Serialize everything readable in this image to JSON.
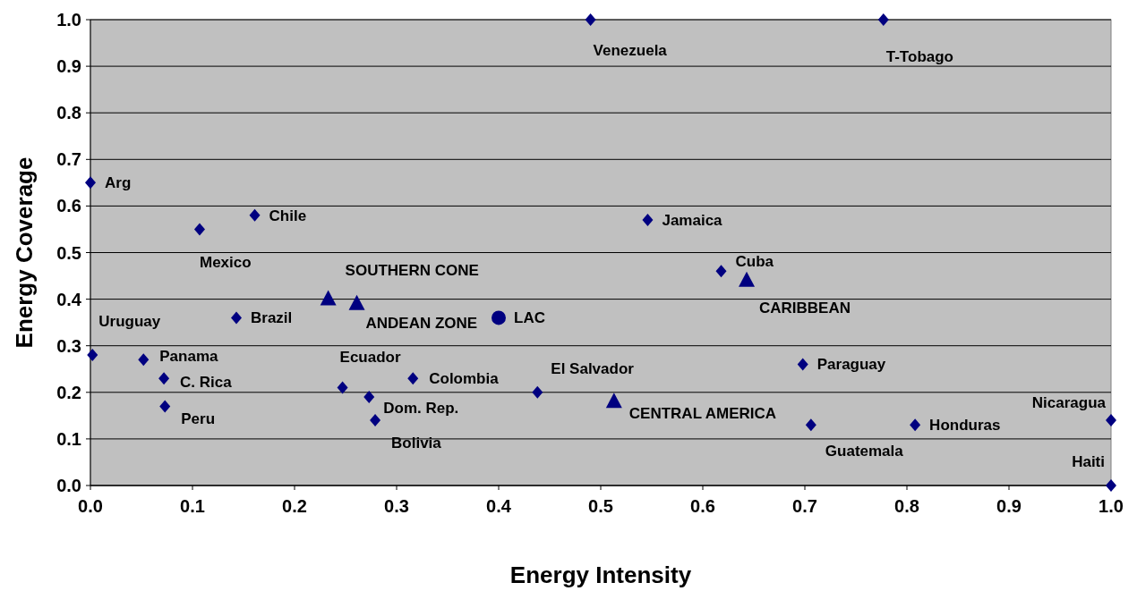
{
  "chart_data": {
    "type": "scatter",
    "xlabel": "Energy Intensity",
    "ylabel": "Energy Coverage",
    "xlim": [
      0,
      1
    ],
    "ylim": [
      0,
      1
    ],
    "xticks": [
      {
        "value": 0,
        "label": "0.0"
      },
      {
        "value": 0.1,
        "label": "0.1"
      },
      {
        "value": 0.2,
        "label": "0.2"
      },
      {
        "value": 0.3,
        "label": "0.3"
      },
      {
        "value": 0.4,
        "label": "0.4"
      },
      {
        "value": 0.5,
        "label": "0.5"
      },
      {
        "value": 0.6,
        "label": "0.6"
      },
      {
        "value": 0.7,
        "label": "0.7"
      },
      {
        "value": 0.8,
        "label": "0.8"
      },
      {
        "value": 0.9,
        "label": "0.9"
      },
      {
        "value": 1,
        "label": "1.0"
      }
    ],
    "yticks": [
      {
        "value": 0,
        "label": "0.0"
      },
      {
        "value": 0.1,
        "label": "0.1"
      },
      {
        "value": 0.2,
        "label": "0.2"
      },
      {
        "value": 0.3,
        "label": "0.3"
      },
      {
        "value": 0.4,
        "label": "0.4"
      },
      {
        "value": 0.5,
        "label": "0.5"
      },
      {
        "value": 0.6,
        "label": "0.6"
      },
      {
        "value": 0.7,
        "label": "0.7"
      },
      {
        "value": 0.8,
        "label": "0.8"
      },
      {
        "value": 0.9,
        "label": "0.9"
      },
      {
        "value": 1,
        "label": "1.0"
      }
    ],
    "grid": "y",
    "series": [
      {
        "color": "#000080",
        "marker": "diamond",
        "x": [
          0.49,
          0.777,
          0,
          0.107,
          0.161,
          0.546,
          0.618,
          0.143,
          0.002,
          0.052,
          0.072,
          0.073,
          0.247,
          0.273,
          0.279,
          0.316,
          0.438,
          0.698,
          0.706,
          0.808,
          1,
          1
        ],
        "values": [
          1,
          1,
          0.65,
          0.55,
          0.58,
          0.57,
          0.46,
          0.36,
          0.28,
          0.27,
          0.23,
          0.17,
          0.21,
          0.19,
          0.14,
          0.23,
          0.2,
          0.26,
          0.13,
          0.13,
          0.14,
          0
        ]
      },
      {
        "color": "#000080",
        "marker": "triangle",
        "x": [
          0.233,
          0.261,
          0.643,
          0.513
        ],
        "values": [
          0.4,
          0.39,
          0.44,
          0.18
        ]
      },
      {
        "color": "#000080",
        "marker": "circle",
        "x": [
          0.4
        ],
        "values": [
          0.36
        ]
      }
    ],
    "annotations": [
      {
        "text": "Venezuela",
        "x": 0.49,
        "y": 1
      },
      {
        "text": "T-Tobago",
        "x": 0.777,
        "y": 1
      },
      {
        "text": "Arg",
        "x": 0,
        "y": 0.65
      },
      {
        "text": "Mexico",
        "x": 0.107,
        "y": 0.55
      },
      {
        "text": "Chile",
        "x": 0.161,
        "y": 0.58
      },
      {
        "text": "Jamaica",
        "x": 0.546,
        "y": 0.57
      },
      {
        "text": "Cuba",
        "x": 0.618,
        "y": 0.46
      },
      {
        "text": "Brazil",
        "x": 0.143,
        "y": 0.36
      },
      {
        "text": "Uruguay",
        "x": 0.002,
        "y": 0.28
      },
      {
        "text": "Panama",
        "x": 0.052,
        "y": 0.27
      },
      {
        "text": "C. Rica",
        "x": 0.072,
        "y": 0.23
      },
      {
        "text": "Peru",
        "x": 0.073,
        "y": 0.17
      },
      {
        "text": "Ecuador",
        "x": 0.247,
        "y": 0.21
      },
      {
        "text": "Dom. Rep.",
        "x": 0.273,
        "y": 0.19
      },
      {
        "text": "Bolivia",
        "x": 0.279,
        "y": 0.14
      },
      {
        "text": "Colombia",
        "x": 0.316,
        "y": 0.23
      },
      {
        "text": "El Salvador",
        "x": 0.438,
        "y": 0.2
      },
      {
        "text": "Paraguay",
        "x": 0.698,
        "y": 0.26
      },
      {
        "text": "Guatemala",
        "x": 0.706,
        "y": 0.13
      },
      {
        "text": "Honduras",
        "x": 0.808,
        "y": 0.13
      },
      {
        "text": "Nicaragua",
        "x": 1,
        "y": 0.14
      },
      {
        "text": "Haiti",
        "x": 1,
        "y": 0
      },
      {
        "text": "SOUTHERN CONE",
        "x": 0.233,
        "y": 0.4
      },
      {
        "text": "ANDEAN ZONE",
        "x": 0.261,
        "y": 0.39
      },
      {
        "text": "CARIBBEAN",
        "x": 0.643,
        "y": 0.44
      },
      {
        "text": "CENTRAL AMERICA",
        "x": 0.513,
        "y": 0.18
      },
      {
        "text": "LAC",
        "x": 0.4,
        "y": 0.36
      }
    ]
  }
}
